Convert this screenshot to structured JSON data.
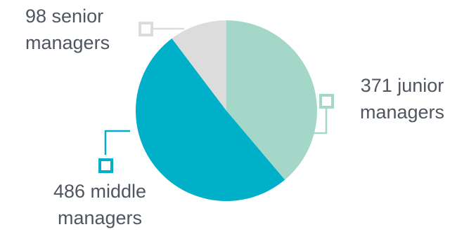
{
  "chart_data": {
    "type": "pie",
    "title": "",
    "slices": [
      {
        "label_value": "371",
        "label_text": "junior managers",
        "value": 371,
        "color": "#a5d7c8",
        "marker_color": "#a5d7c8"
      },
      {
        "label_value": "486",
        "label_text": "middle managers",
        "value": 486,
        "color": "#00b0c8",
        "marker_color": "#00b0c8"
      },
      {
        "label_value": "98",
        "label_text": "senior managers",
        "value": 98,
        "color": "#dcdcdc",
        "marker_color": "#dcdcdc"
      }
    ],
    "labels": {
      "junior": [
        "371 junior",
        "managers"
      ],
      "middle": [
        "486 middle",
        "managers"
      ],
      "senior": [
        "98 senior",
        "managers"
      ]
    },
    "start_angle_deg": 0,
    "direction": "clockwise",
    "legend": "none"
  }
}
